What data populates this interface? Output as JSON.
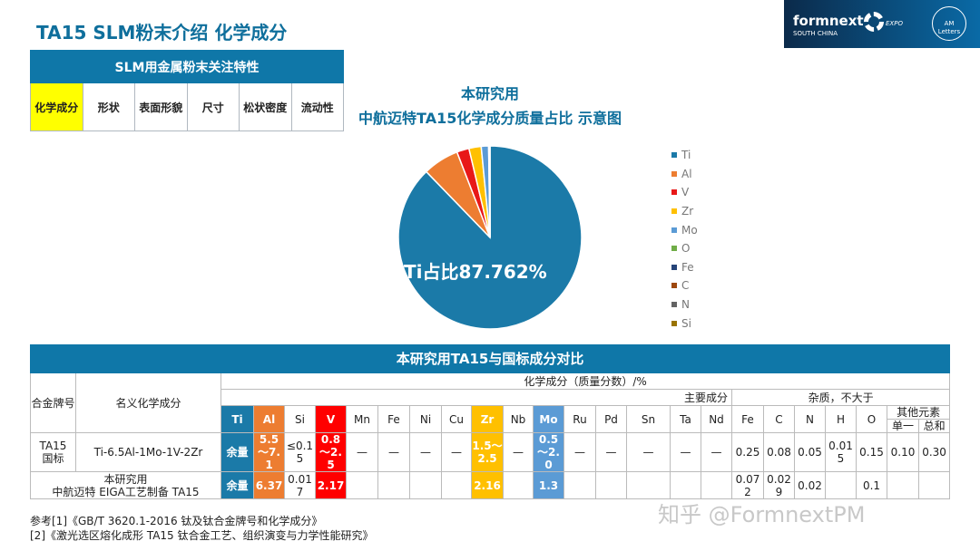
{
  "title": "TA15  SLM粉末介绍 化学成分",
  "logo": {
    "brand": "formnext",
    "sub": "SOUTH CHINA",
    "expo": "EXPO",
    "am": "AM Letters"
  },
  "features": {
    "header": "SLM用金属粉末关注特性",
    "items": [
      "化学成分",
      "形状",
      "表面形貌",
      "尺寸",
      "松状密度",
      "流动性"
    ],
    "highlight_color": "#ffff00"
  },
  "pie": {
    "title_line1": "本研究用",
    "title_line2": "中航迈特TA15化学成分质量占比 示意图",
    "label": "Ti占比87.762%"
  },
  "chart_data": {
    "type": "pie",
    "title": "本研究用 中航迈特TA15化学成分质量占比 示意图",
    "legend_position": "right",
    "categories": [
      "Ti",
      "Al",
      "V",
      "Zr",
      "Mo",
      "O",
      "Fe",
      "C",
      "N",
      "Si"
    ],
    "values": [
      87.762,
      6.37,
      2.17,
      2.16,
      1.3,
      0.1,
      0.072,
      0.029,
      0.02,
      0.017
    ],
    "colors": [
      "#1b7aa8",
      "#ed7d31",
      "#e81818",
      "#ffc000",
      "#5b9bd5",
      "#70ad47",
      "#264478",
      "#9e480e",
      "#636363",
      "#997300"
    ]
  },
  "compare": {
    "title": "本研究用TA15与国标成分对比",
    "h_grade": "合金牌号",
    "h_nominal": "名义化学成分",
    "h_chem": "化学成分（质量分数）/%",
    "h_main": "主要成分",
    "h_impurity": "杂质，不大于",
    "h_other": "其他元素",
    "h_single": "单一",
    "h_total": "总和",
    "main_elements": [
      {
        "n": "Ti",
        "c": "#1b7aa8"
      },
      {
        "n": "Al",
        "c": "#ed7d31"
      },
      {
        "n": "Si"
      },
      {
        "n": "V",
        "c": "#ff0000"
      },
      {
        "n": "Mn"
      },
      {
        "n": "Fe"
      },
      {
        "n": "Ni"
      },
      {
        "n": "Cu"
      },
      {
        "n": "Zr",
        "c": "#ffc000"
      },
      {
        "n": "Nb"
      },
      {
        "n": "Mo",
        "c": "#5b9bd5"
      },
      {
        "n": "Ru"
      },
      {
        "n": "Pd"
      },
      {
        "n": "Sn"
      },
      {
        "n": "Ta"
      },
      {
        "n": "Nd"
      }
    ],
    "impurities": [
      "Fe",
      "C",
      "N",
      "H",
      "O"
    ],
    "rows": [
      {
        "grade": "TA15\n国标",
        "nominal": "Ti-6.5Al-1Mo-1V-2Zr",
        "values": [
          "余量",
          "5.5～7.1",
          "≤0.15",
          "0.8～2.5",
          "—",
          "—",
          "—",
          "—",
          "1.5～2.5",
          "—",
          "0.5～2.0",
          "—",
          "—",
          "—",
          "—",
          "—",
          "0.25",
          "0.08",
          "0.05",
          "0.015",
          "0.15",
          "0.10",
          "0.30"
        ]
      },
      {
        "grade": "本研究用\n中航迈特 EIGA工艺制备 TA15",
        "values": [
          "余量",
          "6.37",
          "0.017",
          "2.17",
          "",
          "",
          "",
          "",
          "2.16",
          "",
          "1.3",
          "",
          "",
          "",
          "",
          "",
          "0.072",
          "0.029",
          "0.02",
          "",
          "0.1",
          "",
          ""
        ]
      }
    ]
  },
  "refs": [
    "参考[1]《GB/T 3620.1-2016 钛及钛合金牌号和化学成分》",
    "[2]《激光选区熔化成形 TA15 钛合金工艺、组织演变与力学性能研究》"
  ],
  "watermark": "知乎 @FormnextPM"
}
